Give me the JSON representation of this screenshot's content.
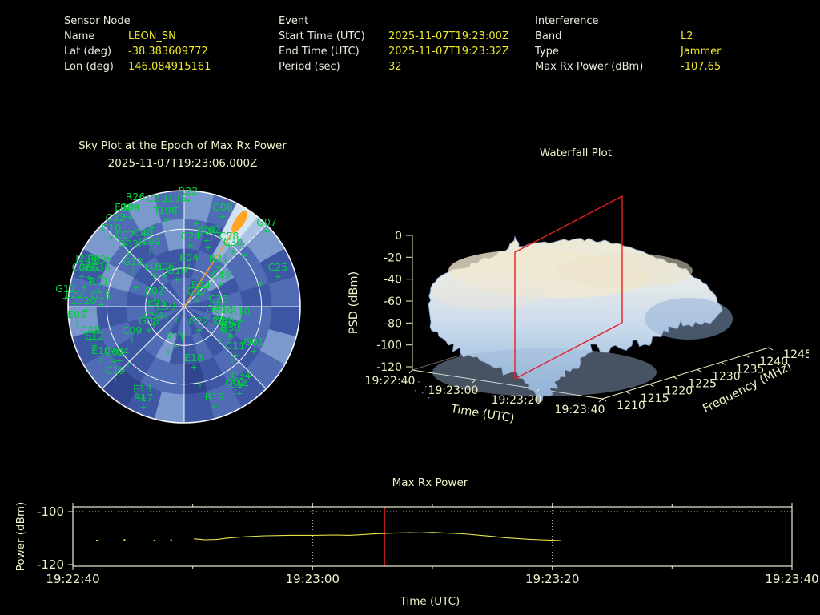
{
  "header": {
    "sensor": {
      "title": "Sensor Node",
      "rows": [
        [
          "Name",
          "LEON_SN"
        ],
        [
          "Lat (deg)",
          "-38.383609772"
        ],
        [
          "Lon (deg)",
          "146.084915161"
        ]
      ]
    },
    "event": {
      "title": "Event",
      "rows": [
        [
          "Start Time (UTC)",
          "2025-11-07T19:23:00Z"
        ],
        [
          "End Time (UTC)",
          "2025-11-07T19:23:32Z"
        ],
        [
          "Period (sec)",
          "32"
        ]
      ]
    },
    "interference": {
      "title": "Interference",
      "rows": [
        [
          "Band",
          "L2"
        ],
        [
          "Type",
          "Jammer"
        ],
        [
          "Max Rx Power (dBm)",
          "-107.65"
        ]
      ]
    }
  },
  "sky": {
    "title1": "Sky Plot at the Epoch of Max Rx Power",
    "title2": "2025-11-07T19:23:06.000Z"
  },
  "chart_data": [
    {
      "type": "heatmap",
      "projection": "polar-sky",
      "title": "Sky Plot at the Epoch of Max Rx Power",
      "subtitle": "2025-11-07T19:23:06.000Z",
      "radius_px": 145,
      "elevation_rings_deg": [
        30,
        60
      ],
      "azimuth_spoke_step_deg": 45,
      "palette": [
        "#26336f",
        "#31458f",
        "#3d57a5",
        "#4f6cb5",
        "#7b99cc",
        "#a9c3e2"
      ],
      "cells": {
        "outer": [
          4,
          3,
          5,
          4,
          2,
          3,
          2,
          4,
          3,
          2,
          3,
          2,
          4,
          2,
          1,
          3,
          2,
          4,
          3,
          2,
          4,
          3,
          4,
          3
        ],
        "upper": [
          3,
          2,
          4,
          3,
          3,
          2,
          3,
          3,
          2,
          3,
          2,
          1,
          3,
          3,
          2,
          2,
          3,
          2,
          3,
          4,
          3,
          2,
          3,
          4
        ],
        "lower": [
          2,
          3,
          3,
          4,
          2,
          3,
          4,
          2,
          3,
          2,
          3,
          2,
          2,
          4,
          3,
          2,
          2,
          3,
          2,
          3,
          2,
          3,
          2,
          2
        ],
        "inner": [
          3,
          2,
          3,
          3,
          3,
          2,
          2,
          3,
          2,
          3,
          2,
          3,
          3,
          2,
          3,
          2,
          3,
          2,
          2,
          3,
          3,
          2,
          3,
          3
        ]
      },
      "satellite_color": "#00cf3f",
      "grid_color": "#ffffff",
      "beam": {
        "azimuth_deg": 33,
        "color": "#f0a028",
        "blob_color": "#ffa528"
      },
      "satellites": [
        [
          "R22",
          5,
          -140
        ],
        [
          "R26",
          -61,
          -133
        ],
        [
          "C21",
          -35,
          -131
        ],
        [
          "J195",
          -11,
          -131
        ],
        [
          "J196",
          -22,
          -116
        ],
        [
          "E30",
          -75,
          -120
        ],
        [
          "R08",
          -68,
          -119
        ],
        [
          "G06",
          48,
          -120
        ],
        [
          "G07",
          103,
          -101
        ],
        [
          "C32",
          -86,
          -107
        ],
        [
          "C10",
          -91,
          -94
        ],
        [
          "C07",
          -74,
          -85
        ],
        [
          "C40",
          -51,
          -88
        ],
        [
          "G03",
          -70,
          -74
        ],
        [
          "J199",
          -43,
          -77
        ],
        [
          "G04",
          28,
          -90
        ],
        [
          "C62",
          34,
          -92
        ],
        [
          "C24",
          8,
          -84
        ],
        [
          "C58",
          56,
          -84
        ],
        [
          "C30",
          61,
          -76
        ],
        [
          "C25",
          117,
          -45
        ],
        [
          "E04",
          6,
          -57
        ],
        [
          "R21",
          43,
          -56
        ],
        [
          "C49",
          46,
          -35
        ],
        [
          "E24",
          21,
          -23
        ],
        [
          "G17",
          16,
          -15
        ],
        [
          "G19",
          -9,
          -41
        ],
        [
          "E06",
          -24,
          -46
        ],
        [
          "E01",
          -38,
          -46
        ],
        [
          "G13",
          -64,
          -52
        ],
        [
          "E02",
          -37,
          -15
        ],
        [
          "E25",
          -34,
          -1
        ],
        [
          "C59",
          -23,
          4
        ],
        [
          "C23",
          43,
          -5
        ],
        [
          "G20",
          40,
          7
        ],
        [
          "C16",
          49,
          8
        ],
        [
          "R10",
          70,
          10
        ],
        [
          "G22",
          18,
          22
        ],
        [
          "C14",
          47,
          21
        ],
        [
          "G14",
          51,
          23
        ],
        [
          "R20",
          57,
          27
        ],
        [
          "R30",
          58,
          30
        ],
        [
          "C11",
          64,
          53
        ],
        [
          "G01",
          87,
          48
        ],
        [
          "E18",
          12,
          68
        ],
        [
          "C34",
          71,
          90
        ],
        [
          "G02",
          64,
          99
        ],
        [
          "E14",
          69,
          101
        ],
        [
          "R19",
          38,
          117
        ],
        [
          "E13",
          -52,
          107
        ],
        [
          "R17",
          -51,
          118
        ],
        [
          "C19",
          -86,
          84
        ],
        [
          "C02",
          -87,
          61
        ],
        [
          "R04",
          -81,
          60
        ],
        [
          "E10",
          -104,
          59
        ],
        [
          "C48",
          -117,
          33
        ],
        [
          "E12",
          -112,
          41
        ],
        [
          "C09",
          -65,
          34
        ],
        [
          "R11",
          -11,
          42
        ],
        [
          "E05",
          -134,
          14
        ],
        [
          "C20",
          -122,
          -3
        ],
        [
          "G15",
          -104,
          -10
        ],
        [
          "E22",
          -137,
          -11
        ],
        [
          "G12",
          -148,
          -18
        ],
        [
          "R01",
          -106,
          -27
        ],
        [
          "E36",
          -104,
          -45
        ],
        [
          "J200",
          -122,
          -56
        ],
        [
          "E09",
          -109,
          -55
        ],
        [
          "C06",
          -128,
          -45
        ],
        [
          "G05",
          -119,
          -44
        ],
        [
          "C54",
          -38,
          15
        ],
        [
          "G08",
          -44,
          22
        ]
      ],
      "extra_marks": [
        [
          -95,
          -57
        ],
        [
          15,
          -100
        ],
        [
          -60,
          -20
        ],
        [
          30,
          -70
        ],
        [
          95,
          -25
        ],
        [
          -20,
          60
        ],
        [
          60,
          70
        ],
        [
          -70,
          75
        ],
        [
          20,
          100
        ],
        [
          -40,
          -95
        ],
        [
          75,
          -60
        ],
        [
          -10,
          20
        ],
        [
          -125,
          -20
        ],
        [
          45,
          45
        ]
      ]
    },
    {
      "type": "area",
      "surface": true,
      "title": "Waterfall Plot",
      "axes": {
        "z": {
          "label": "PSD (dBm)",
          "ticks": [
            0,
            -20,
            -40,
            -60,
            -80,
            -100,
            -120
          ],
          "range": [
            -120,
            0
          ]
        },
        "x": {
          "label": "Time (UTC)",
          "ticks": [
            "19:22:40",
            "19:23:00",
            "19:23:20",
            "19:23:40"
          ]
        },
        "y": {
          "label": "Frequency (MHz)",
          "ticks": [
            1210,
            1215,
            1220,
            1225,
            1230,
            1235,
            1240,
            1245
          ],
          "range": [
            1210,
            1245
          ]
        }
      },
      "plateau_psd_dbm": -30,
      "floor_psd_dbm": -110,
      "slice_marker": {
        "time_utc": "19:23:06",
        "color": "#e62020"
      }
    },
    {
      "type": "line",
      "title": "Max Rx Power",
      "xlabel": "Time (UTC)",
      "ylabel": "Power (dBm)",
      "line_color": "#e6e64a",
      "marker_color": "#e62020",
      "x_tick_labels": [
        "19:22:40",
        "19:23:00",
        "19:23:20",
        "19:23:40"
      ],
      "x_tick_times_sec": [
        0,
        20,
        40,
        60
      ],
      "x_minor_ticks_sec": [
        10,
        30,
        50
      ],
      "y_ticks": [
        -100,
        -120
      ],
      "ylim": [
        -120,
        -98
      ],
      "h_grid_dbm": [
        -100
      ],
      "v_grid_sec": [
        20,
        40
      ],
      "marker_time_sec": 26,
      "max_rx_power_dbm": -107.65,
      "points_isolated": [
        [
          2,
          -110.9
        ],
        [
          4.3,
          -110.7
        ],
        [
          6.8,
          -110.9
        ],
        [
          8.2,
          -110.8
        ]
      ],
      "series": [
        [
          10.1,
          -110.2
        ],
        [
          11,
          -110.6
        ],
        [
          12,
          -110.5
        ],
        [
          13,
          -109.9
        ],
        [
          14.5,
          -109.4
        ],
        [
          16,
          -109.1
        ],
        [
          18,
          -108.9
        ],
        [
          20,
          -108.9
        ],
        [
          22,
          -108.8
        ],
        [
          23,
          -108.9
        ],
        [
          24,
          -108.7
        ],
        [
          25,
          -108.4
        ],
        [
          26,
          -108.2
        ],
        [
          27,
          -108.0
        ],
        [
          28,
          -107.9
        ],
        [
          29,
          -108.0
        ],
        [
          30,
          -107.8
        ],
        [
          31,
          -108.0
        ],
        [
          32,
          -108.2
        ],
        [
          33,
          -108.5
        ],
        [
          34,
          -108.9
        ],
        [
          35,
          -109.3
        ],
        [
          36,
          -109.8
        ],
        [
          37,
          -110.1
        ],
        [
          38,
          -110.4
        ],
        [
          39,
          -110.6
        ],
        [
          40,
          -110.8
        ],
        [
          40.7,
          -110.9
        ]
      ]
    }
  ]
}
